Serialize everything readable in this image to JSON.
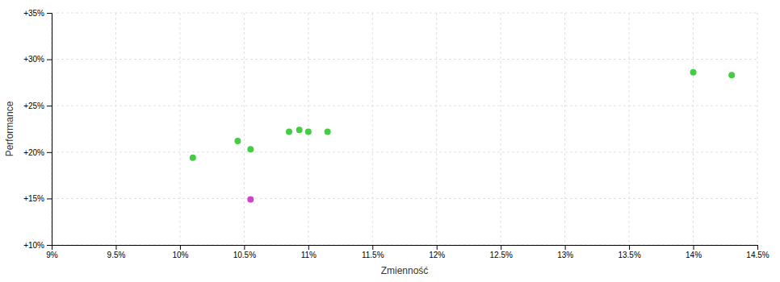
{
  "chart_data": {
    "type": "scatter",
    "x_label": "Zmienność",
    "y_label": "Performance",
    "xlim": [
      0.09,
      0.145
    ],
    "ylim": [
      0.1,
      0.35
    ],
    "xticks": [
      {
        "value": 0.09,
        "label": "9%"
      },
      {
        "value": 0.095,
        "label": "9.5%"
      },
      {
        "value": 0.1,
        "label": "10%"
      },
      {
        "value": 0.105,
        "label": "10.5%"
      },
      {
        "value": 0.11,
        "label": "11%"
      },
      {
        "value": 0.115,
        "label": "11.5%"
      },
      {
        "value": 0.12,
        "label": "12%"
      },
      {
        "value": 0.125,
        "label": "12.5%"
      },
      {
        "value": 0.13,
        "label": "13%"
      },
      {
        "value": 0.135,
        "label": "13.5%"
      },
      {
        "value": 0.14,
        "label": "14%"
      },
      {
        "value": 0.145,
        "label": "14.5%"
      }
    ],
    "yticks": [
      {
        "value": 0.1,
        "label": "+10%"
      },
      {
        "value": 0.15,
        "label": "+15%"
      },
      {
        "value": 0.2,
        "label": "+20%"
      },
      {
        "value": 0.25,
        "label": "+25%"
      },
      {
        "value": 0.3,
        "label": "+30%"
      },
      {
        "value": 0.35,
        "label": "+35%"
      }
    ],
    "grid": true,
    "series": [
      {
        "color": "#44cc44",
        "x": [
          0.101,
          0.1045,
          0.1055,
          0.1085,
          0.1093,
          0.11,
          0.1115,
          0.14,
          0.143
        ],
        "values": [
          0.194,
          0.212,
          0.203,
          0.222,
          0.224,
          0.222,
          0.222,
          0.286,
          0.283
        ]
      },
      {
        "color": "#cc44cc",
        "x": [
          0.1055
        ],
        "values": [
          0.149
        ]
      }
    ]
  }
}
